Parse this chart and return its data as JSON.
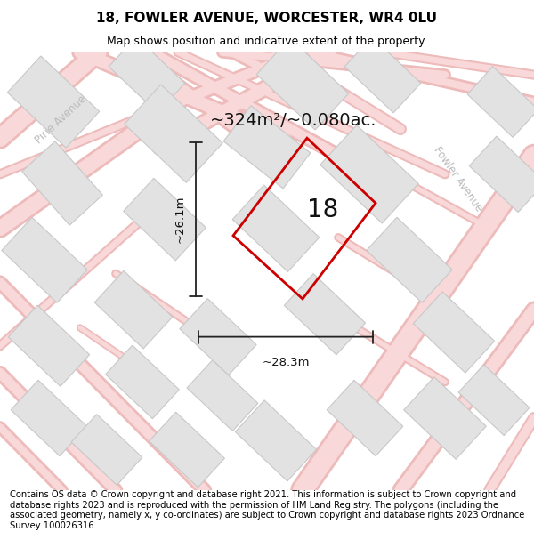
{
  "title_line1": "18, FOWLER AVENUE, WORCESTER, WR4 0LU",
  "title_line2": "Map shows position and indicative extent of the property.",
  "area_text": "~324m²/~0.080ac.",
  "plot_number": "18",
  "dim_width": "~28.3m",
  "dim_height": "~26.1m",
  "footer_text": "Contains OS data © Crown copyright and database right 2021. This information is subject to Crown copyright and database rights 2023 and is reproduced with the permission of HM Land Registry. The polygons (including the associated geometry, namely x, y co-ordinates) are subject to Crown copyright and database rights 2023 Ordnance Survey 100026316.",
  "bg_color": "#f8f8f8",
  "road_color": "#f0b8b8",
  "road_outline": "#e8a0a0",
  "building_face": "#e0e0e0",
  "building_edge": "#c8c8c8",
  "plot_stroke": "#cc0000",
  "dim_color": "#222222",
  "street_label_color": "#bbbbbb",
  "title_fontsize": 11,
  "subtitle_fontsize": 9,
  "area_fontsize": 14,
  "plot_num_fontsize": 20,
  "dim_fontsize": 9.5,
  "footer_fontsize": 7.2,
  "street1_label": "Pirie Avenue",
  "street2_label": "Fowler Avenue"
}
